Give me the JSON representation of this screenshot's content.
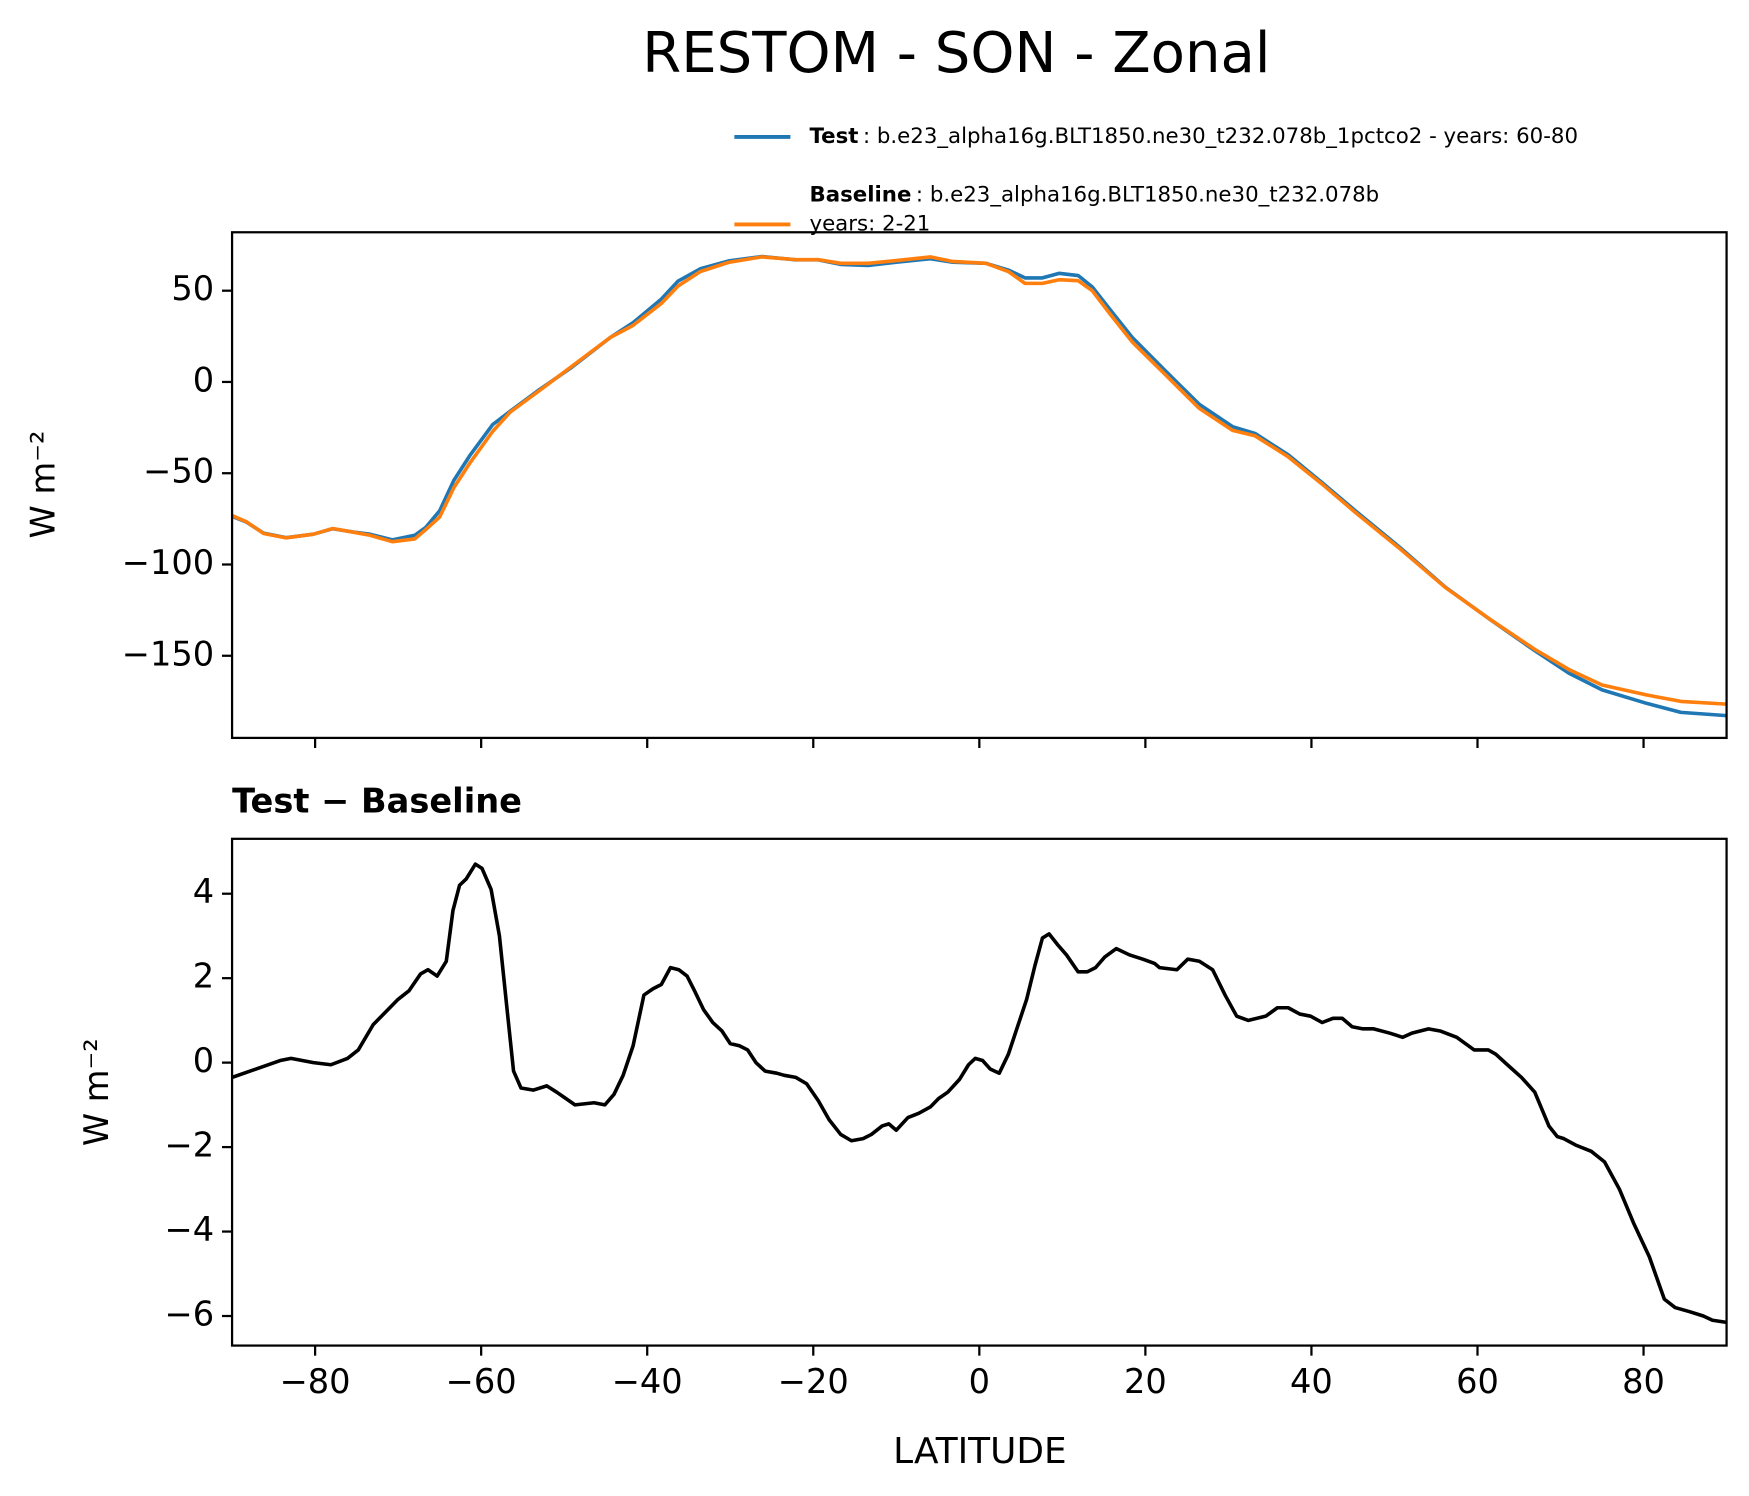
{
  "chart_data": [
    {
      "type": "line",
      "title": "RESTOM - SON - Zonal",
      "ylabel": "W m⁻²",
      "x": [
        -90,
        -88.3,
        -86.2,
        -83.5,
        -80.2,
        -77.9,
        -75.4,
        -73.4,
        -70.7,
        -68,
        -66.7,
        -65,
        -63.3,
        -61.3,
        -58.6,
        -56.5,
        -53.2,
        -49.1,
        -44.4,
        -41.7,
        -38.3,
        -36.3,
        -33.6,
        -30.2,
        -26.2,
        -22.1,
        -19.4,
        -16.7,
        -13.4,
        -10,
        -5.9,
        -3.2,
        0.8,
        3.5,
        5.5,
        7.6,
        9.6,
        11.9,
        13.6,
        15.7,
        18.4,
        22.4,
        26.5,
        30.5,
        33.2,
        37.2,
        41.3,
        45.3,
        50.7,
        56.1,
        61.5,
        66.9,
        71,
        75,
        80.4,
        84.5,
        90
      ],
      "series": [
        {
          "name": "Test",
          "description_lines": [
            ": b.e23_alpha16g.BLT1850.ne30_t232.078b_1pctco2 - years: 60-80"
          ],
          "color": "#1f77b4",
          "values": [
            -73.6,
            -76.7,
            -82.8,
            -85.3,
            -83.4,
            -80.4,
            -82.2,
            -83.4,
            -86.5,
            -84,
            -79.8,
            -70.6,
            -54,
            -39.9,
            -23.3,
            -16,
            -4.9,
            8,
            24.5,
            32.5,
            45.4,
            55.2,
            62,
            66.3,
            68.7,
            66.9,
            66.9,
            64.4,
            63.8,
            65.6,
            67.5,
            65.6,
            65,
            61.3,
            57,
            57,
            59.5,
            58.3,
            52.1,
            39.9,
            24.5,
            6.1,
            -12.3,
            -24.5,
            -28.2,
            -39.9,
            -55.2,
            -70.6,
            -90.8,
            -112.3,
            -130.1,
            -147.2,
            -159.5,
            -168.7,
            -176.1,
            -181,
            -182.8
          ]
        },
        {
          "name": "Baseline",
          "description_lines": [
            ": b.e23_alpha16g.BLT1850.ne30_t232.078b",
            "years: 2-21"
          ],
          "color": "#ff7f0e",
          "values": [
            -73.2,
            -76.5,
            -83,
            -85.4,
            -83.4,
            -80.3,
            -82.3,
            -84,
            -87.5,
            -86,
            -81,
            -74,
            -58,
            -44,
            -27,
            -16.5,
            -5.5,
            8.5,
            24.5,
            31,
            43,
            52.5,
            60.5,
            65.5,
            68.5,
            67,
            67,
            65,
            65,
            66.5,
            68.5,
            66,
            65,
            60.5,
            54,
            54,
            56,
            55.5,
            50,
            37.5,
            22,
            4,
            -14.5,
            -26.5,
            -29.5,
            -41,
            -56,
            -71.5,
            -91.5,
            -112.5,
            -130,
            -146.5,
            -157.5,
            -166,
            -171.5,
            -175,
            -176.5
          ]
        }
      ],
      "xlim": [
        -90,
        90
      ],
      "xticks": [
        -80,
        -60,
        -40,
        -20,
        0,
        20,
        40,
        60,
        80
      ],
      "ylim": [
        -195,
        82
      ],
      "yticks": [
        {
          "value": 50,
          "label": "50"
        },
        {
          "value": 0,
          "label": "0"
        },
        {
          "value": -50,
          "label": "−50"
        },
        {
          "value": -100,
          "label": "−100"
        },
        {
          "value": -150,
          "label": "−150"
        }
      ]
    },
    {
      "type": "line",
      "title": "Test − Baseline",
      "ylabel": "W m⁻²",
      "xlabel": "LATITUDE",
      "color": "#000000",
      "x": [
        -90,
        -84.2,
        -82.9,
        -80.2,
        -78.1,
        -76.1,
        -74.8,
        -73,
        -70,
        -68.7,
        -67.3,
        -66.4,
        -65.3,
        -64.2,
        -63.4,
        -62.6,
        -61.8,
        -60.7,
        -59.9,
        -58.8,
        -57.8,
        -56.9,
        -56.1,
        -55.2,
        -53.7,
        -52.1,
        -50.9,
        -49.8,
        -48.7,
        -46.4,
        -45.1,
        -44,
        -42.9,
        -41.7,
        -40.4,
        -39.3,
        -38.3,
        -37.2,
        -36.2,
        -35.2,
        -34.3,
        -33.2,
        -32.1,
        -31,
        -30,
        -28.9,
        -27.9,
        -26.9,
        -25.8,
        -24.4,
        -23.5,
        -22.1,
        -20.8,
        -19.4,
        -18.1,
        -16.7,
        -15.4,
        -14,
        -13,
        -11.7,
        -10.9,
        -10,
        -8.6,
        -7.3,
        -5.9,
        -4.9,
        -3.8,
        -2.4,
        -1.3,
        -0.5,
        0.4,
        1.3,
        2.4,
        3.5,
        4.6,
        5.7,
        6.7,
        7.6,
        8.4,
        9.4,
        10.5,
        11.9,
        13,
        14,
        15.1,
        16.5,
        18.1,
        19.7,
        21.1,
        21.7,
        23.8,
        25.1,
        26.5,
        28.1,
        29.6,
        31,
        32.4,
        34.5,
        35.9,
        37.2,
        38.6,
        39.9,
        41.3,
        42.6,
        43.7,
        44.9,
        46.2,
        47.5,
        49.4,
        51,
        52.1,
        54.1,
        55.5,
        57.5,
        59.6,
        61.3,
        62.2,
        63.6,
        65.3,
        66.9,
        68.6,
        69.6,
        70.4,
        71.8,
        73.7,
        75.3,
        77.1,
        78.8,
        80.7,
        82.5,
        83.8,
        85.6,
        87.2,
        88.3,
        90
      ],
      "values": [
        -0.35,
        0.05,
        0.1,
        0,
        -0.05,
        0.1,
        0.3,
        0.9,
        1.5,
        1.7,
        2.1,
        2.2,
        2.05,
        2.4,
        3.6,
        4.2,
        4.35,
        4.7,
        4.6,
        4.1,
        3.0,
        1.3,
        -0.2,
        -0.6,
        -0.65,
        -0.55,
        -0.7,
        -0.85,
        -1.0,
        -0.95,
        -1.0,
        -0.75,
        -0.3,
        0.4,
        1.6,
        1.75,
        1.85,
        2.25,
        2.2,
        2.05,
        1.7,
        1.25,
        0.95,
        0.75,
        0.45,
        0.4,
        0.3,
        0,
        -0.2,
        -0.25,
        -0.3,
        -0.35,
        -0.5,
        -0.9,
        -1.35,
        -1.7,
        -1.85,
        -1.8,
        -1.7,
        -1.5,
        -1.45,
        -1.6,
        -1.3,
        -1.2,
        -1.05,
        -0.85,
        -0.7,
        -0.4,
        -0.05,
        0.1,
        0.05,
        -0.15,
        -0.25,
        0.2,
        0.85,
        1.5,
        2.3,
        2.95,
        3.05,
        2.8,
        2.55,
        2.15,
        2.15,
        2.25,
        2.5,
        2.7,
        2.55,
        2.45,
        2.35,
        2.25,
        2.2,
        2.45,
        2.4,
        2.2,
        1.6,
        1.1,
        1.0,
        1.1,
        1.3,
        1.3,
        1.15,
        1.1,
        0.95,
        1.05,
        1.05,
        0.85,
        0.8,
        0.8,
        0.7,
        0.6,
        0.7,
        0.8,
        0.75,
        0.6,
        0.3,
        0.3,
        0.2,
        -0.05,
        -0.35,
        -0.7,
        -1.5,
        -1.75,
        -1.8,
        -1.95,
        -2.1,
        -2.35,
        -3.0,
        -3.8,
        -4.6,
        -5.6,
        -5.8,
        -5.9,
        -6.0,
        -6.1,
        -6.15
      ],
      "xlim": [
        -90,
        90
      ],
      "xticks": [
        {
          "value": -80,
          "label": "−80"
        },
        {
          "value": -60,
          "label": "−60"
        },
        {
          "value": -40,
          "label": "−40"
        },
        {
          "value": -20,
          "label": "−20"
        },
        {
          "value": 0,
          "label": "0"
        },
        {
          "value": 20,
          "label": "20"
        },
        {
          "value": 40,
          "label": "40"
        },
        {
          "value": 60,
          "label": "60"
        },
        {
          "value": 80,
          "label": "80"
        }
      ],
      "ylim": [
        -6.7,
        5.3
      ],
      "yticks": [
        {
          "value": 4,
          "label": "4"
        },
        {
          "value": 2,
          "label": "2"
        },
        {
          "value": 0,
          "label": "0"
        },
        {
          "value": -2,
          "label": "−2"
        },
        {
          "value": -4,
          "label": "−4"
        },
        {
          "value": -6,
          "label": "−6"
        }
      ]
    }
  ]
}
